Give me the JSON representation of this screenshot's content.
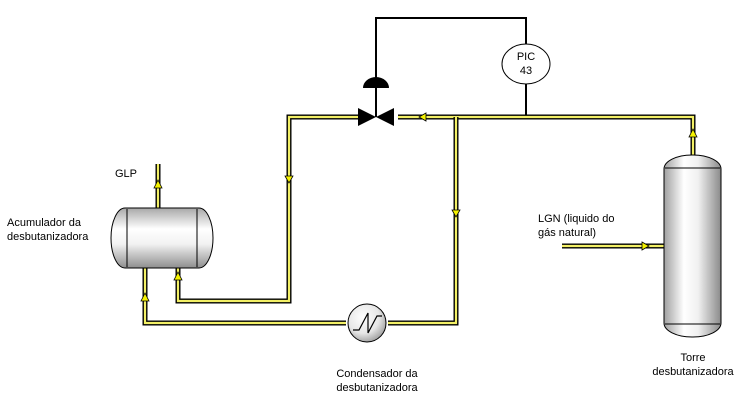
{
  "labels": {
    "glp": "GLP",
    "accumulator_line1": "Acumulador da",
    "accumulator_line2": "desbutanizadora",
    "condenser_line1": "Condensador da",
    "condenser_line2": "desbutanizadora",
    "tower_line1": "Torre",
    "tower_line2": "desbutanizadora",
    "lgn_line1": "LGN (liquido do",
    "lgn_line2": "gás natural)"
  },
  "controller": {
    "tag_line1": "PIC",
    "tag_line2": "43"
  },
  "colors": {
    "pipe_fill": "#f3f066",
    "arrow_fill": "#f5f200",
    "outline": "#000000",
    "vessel_light": "#ffffff",
    "vessel_shade": "#9a9a9a"
  }
}
